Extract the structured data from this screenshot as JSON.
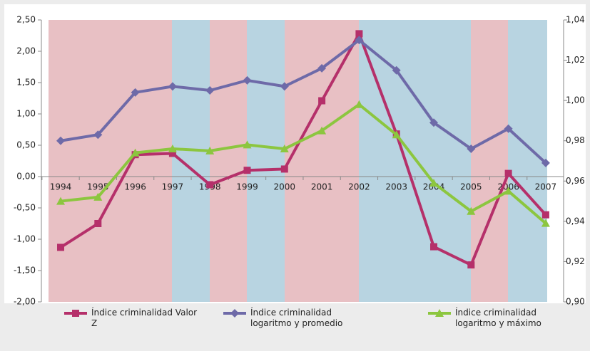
{
  "chart_data": {
    "type": "line",
    "categories": [
      "1994",
      "1995",
      "1996",
      "1997",
      "1998",
      "1999",
      "2000",
      "2001",
      "2002",
      "2003",
      "2004",
      "2005",
      "2006",
      "2007"
    ],
    "series": [
      {
        "name": "Índice criminalidad Valor Z",
        "color": "#b5306a",
        "marker": "square",
        "axis": "y",
        "values": [
          -1.13,
          -0.75,
          0.35,
          0.37,
          -0.13,
          0.1,
          0.12,
          1.21,
          2.28,
          0.68,
          -1.12,
          -1.41,
          0.05,
          -0.61
        ]
      },
      {
        "name": "Índice criminalidad logaritmo y promedio",
        "color": "#6e6aa8",
        "marker": "diamond",
        "axis": "y2",
        "values": [
          0.98,
          0.983,
          1.004,
          1.007,
          1.005,
          1.01,
          1.007,
          1.016,
          1.03,
          1.015,
          0.989,
          0.976,
          0.986,
          0.969
        ]
      },
      {
        "name": "Índice criminalidad logaritmo y máximo",
        "color": "#8cc63f",
        "marker": "triangle",
        "axis": "y2",
        "values": [
          0.95,
          0.952,
          0.974,
          0.976,
          0.975,
          0.978,
          0.976,
          0.985,
          0.998,
          0.983,
          0.959,
          0.945,
          0.955,
          0.939
        ]
      }
    ],
    "ylim": [
      -2,
      2.5
    ],
    "yticks": [
      {
        "value": 2.5,
        "label": "2,50"
      },
      {
        "value": 2,
        "label": "2,00"
      },
      {
        "value": 1.5,
        "label": "1,50"
      },
      {
        "value": 1,
        "label": "1,00"
      },
      {
        "value": 0.5,
        "label": "0,50"
      },
      {
        "value": 0,
        "label": "0,00"
      },
      {
        "value": -0.5,
        "label": "-0,50"
      },
      {
        "value": -1,
        "label": "-1,00"
      },
      {
        "value": -1.5,
        "label": "-1,50"
      },
      {
        "value": -2,
        "label": "-2,00"
      }
    ],
    "y2lim": [
      0.9,
      1.04
    ],
    "y2ticks": [
      {
        "value": 1.04,
        "label": "1,04"
      },
      {
        "value": 1.02,
        "label": "1,02"
      },
      {
        "value": 1,
        "label": "1,00"
      },
      {
        "value": 0.98,
        "label": "0,98"
      },
      {
        "value": 0.96,
        "label": "0,96"
      },
      {
        "value": 0.94,
        "label": "0,94"
      },
      {
        "value": 0.92,
        "label": "0,92"
      },
      {
        "value": 0.9,
        "label": "0,90"
      }
    ],
    "legend": "bottom"
  }
}
